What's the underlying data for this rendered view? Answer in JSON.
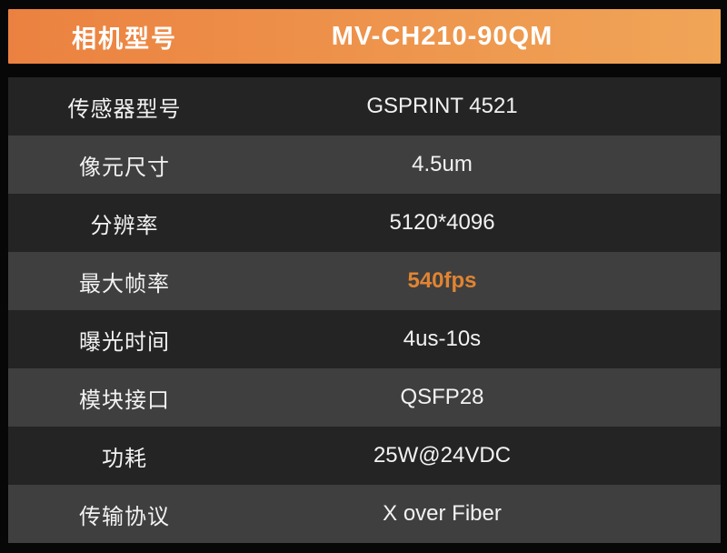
{
  "header": {
    "label": "相机型号",
    "value": "MV-CH210-90QM"
  },
  "rows": [
    {
      "label": "传感器型号",
      "value": "GSPRINT 4521",
      "highlight": false
    },
    {
      "label": "像元尺寸",
      "value": "4.5um",
      "highlight": false
    },
    {
      "label": "分辨率",
      "value": "5120*4096",
      "highlight": false
    },
    {
      "label": "最大帧率",
      "value": "540fps",
      "highlight": true
    },
    {
      "label": "曝光时间",
      "value": "4us-10s",
      "highlight": false
    },
    {
      "label": "模块接口",
      "value": "QSFP28",
      "highlight": false
    },
    {
      "label": "功耗",
      "value": "25W@24VDC",
      "highlight": false
    },
    {
      "label": "传输协议",
      "value": "X over Fiber",
      "highlight": false
    }
  ],
  "colors": {
    "header_gradient_left": "#EB8140",
    "header_gradient_right": "#F0A557",
    "row_dark": "#242424",
    "row_gray": "#3F3F3F",
    "frame": "#070707",
    "text": "#F2F2F2",
    "highlight": "#E28432"
  }
}
